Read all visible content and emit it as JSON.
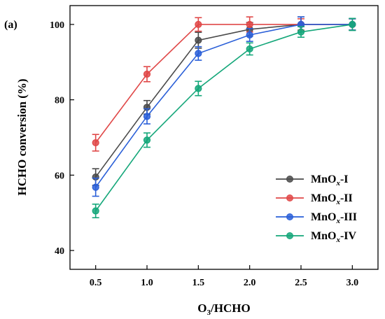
{
  "chart_data": {
    "type": "line",
    "panel_label": "(a)",
    "xlabel": "O3/HCHO",
    "xlabel_parts": [
      "O",
      "3",
      "/HCHO"
    ],
    "ylabel": "HCHO conversion (%)",
    "x": [
      0.5,
      1.0,
      1.5,
      2.0,
      2.5,
      3.0
    ],
    "x_tick_labels": [
      "0.5",
      "1.0",
      "1.5",
      "2.0",
      "2.5",
      "3.0"
    ],
    "y_ticks": [
      40,
      60,
      80,
      100
    ],
    "xlim": [
      0.25,
      3.25
    ],
    "ylim": [
      35,
      105
    ],
    "legend_position": "right",
    "error_bars": true,
    "series": [
      {
        "name": "MnOx-I",
        "label_parts": [
          "MnO",
          "x",
          "-I"
        ],
        "color": "#4a4a4a",
        "values": [
          59.5,
          78.0,
          95.8,
          98.7,
          100.0,
          100.0
        ],
        "errors": [
          2.2,
          1.8,
          2.1,
          1.8,
          2.0,
          1.5
        ]
      },
      {
        "name": "MnOx-II",
        "label_parts": [
          "MnO",
          "x",
          "-II"
        ],
        "color": "#e04848",
        "values": [
          68.6,
          86.8,
          100.0,
          100.0,
          100.0,
          100.0
        ],
        "errors": [
          2.2,
          2.0,
          1.8,
          2.0,
          1.5,
          1.5
        ]
      },
      {
        "name": "MnOx-III",
        "label_parts": [
          "MnO",
          "x",
          "-III"
        ],
        "color": "#2a5fd8",
        "values": [
          56.8,
          75.6,
          92.3,
          97.2,
          100.0,
          100.0
        ],
        "errors": [
          2.4,
          2.0,
          1.8,
          1.7,
          2.0,
          1.5
        ]
      },
      {
        "name": "MnOx-IV",
        "label_parts": [
          "MnO",
          "x",
          "-IV"
        ],
        "color": "#15a77a",
        "values": [
          50.5,
          69.3,
          83.0,
          93.5,
          98.0,
          100.0
        ],
        "errors": [
          1.8,
          1.9,
          1.9,
          1.6,
          1.4,
          1.6
        ]
      }
    ]
  }
}
